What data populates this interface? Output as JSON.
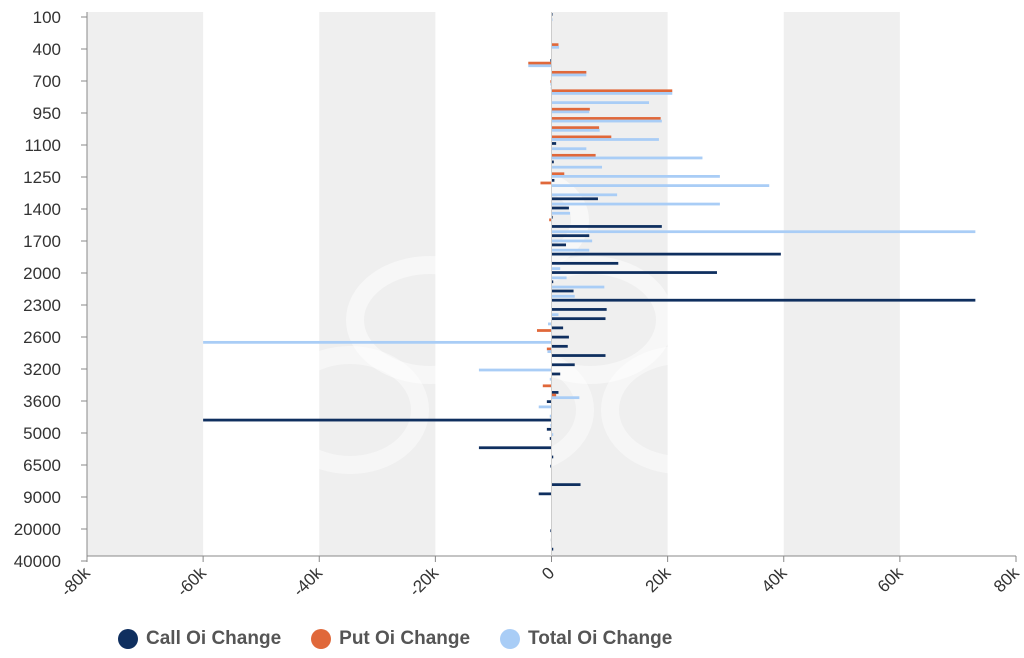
{
  "colors": {
    "call": "#0f2f5f",
    "put": "#e0683a",
    "total": "#a9cdf6",
    "band": "#efefef",
    "axis": "#888888",
    "zero": "#cccccc"
  },
  "legend": {
    "call_label": "Call Oi Change",
    "put_label": "Put Oi Change",
    "total_label": "Total Oi Change"
  },
  "chart_data": {
    "type": "bar",
    "orientation": "horizontal",
    "xlim": [
      -80000,
      80000
    ],
    "x_ticks": [
      "-80k",
      "-60k",
      "-40k",
      "-20k",
      "0",
      "20k",
      "40k",
      "60k",
      "80k"
    ],
    "x_tick_values": [
      -80000,
      -60000,
      -40000,
      -20000,
      0,
      20000,
      40000,
      60000,
      80000
    ],
    "y_tick_labels": [
      "100",
      "400",
      "700",
      "950",
      "1100",
      "1250",
      "1400",
      "1700",
      "2000",
      "2300",
      "2600",
      "3200",
      "3600",
      "5000",
      "6500",
      "9000",
      "20000",
      "40000"
    ],
    "legend_position": "bottom",
    "grid": true,
    "series": [
      {
        "name": "Call Oi Change",
        "values": [
          100,
          0,
          0,
          0,
          0,
          -200,
          0,
          0,
          -100,
          0,
          0,
          0,
          0,
          0,
          800,
          0,
          400,
          0,
          500,
          0,
          8000,
          3000,
          200,
          19000,
          6500,
          2500,
          39500,
          11500,
          28500,
          300,
          3800,
          73000,
          9500,
          9300,
          2000,
          3000,
          2800,
          9300,
          4000,
          1500,
          0,
          1200,
          -800,
          0,
          -60000,
          -800,
          -300,
          -12500,
          300,
          -200,
          0,
          5000,
          -2200,
          0,
          0,
          0,
          -200,
          -100,
          300
        ]
      },
      {
        "name": "Put Oi Change",
        "values": [
          0,
          0,
          0,
          1200,
          0,
          -4000,
          6000,
          -200,
          20800,
          0,
          6600,
          18800,
          8200,
          10300,
          0,
          7600,
          0,
          2200,
          -1900,
          0,
          0,
          0,
          -400,
          0,
          0,
          0,
          0,
          0,
          0,
          0,
          0,
          0,
          0,
          0,
          -2500,
          0,
          -800,
          0,
          0,
          0,
          -1500,
          800,
          0,
          0,
          0,
          0,
          0,
          0,
          0,
          0,
          0,
          0,
          0,
          0,
          0,
          0,
          0,
          0,
          0
        ]
      },
      {
        "name": "Total Oi Change",
        "values": [
          100,
          0,
          0,
          1300,
          0,
          -4000,
          6000,
          -200,
          20800,
          16800,
          6500,
          19000,
          8300,
          18500,
          6000,
          26000,
          8700,
          29000,
          37500,
          11300,
          29000,
          3200,
          0,
          73000,
          7000,
          6500,
          0,
          1500,
          2600,
          9100,
          4000,
          0,
          1200,
          -600,
          0,
          -60000,
          -700,
          0,
          -12500,
          -300,
          0,
          4800,
          -2200,
          -300,
          -200,
          300,
          0,
          0,
          0,
          0,
          0,
          0,
          0,
          0,
          0,
          0,
          0,
          0,
          0
        ]
      }
    ]
  }
}
